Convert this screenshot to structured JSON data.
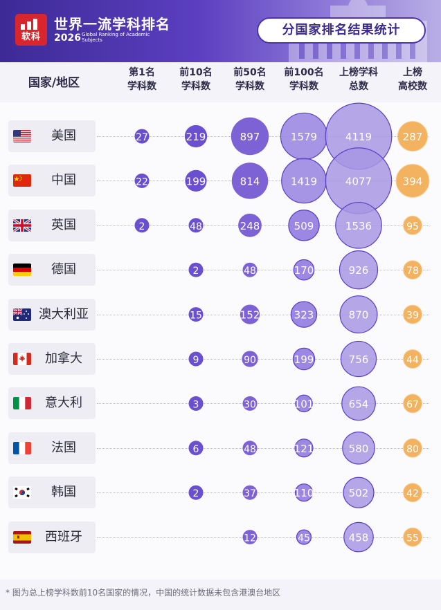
{
  "header": {
    "logo_text": "软科",
    "title": "世界一流学科排名",
    "year": "2026",
    "subtitle_en": "Global Ranking of Academic Subjects",
    "badge": "分国家排名结果统计"
  },
  "table": {
    "country_header": "国家/地区"
  },
  "chart_data": {
    "type": "bubble-table",
    "columns": [
      {
        "line1": "第1名",
        "line2": "学科数"
      },
      {
        "line1": "前10名",
        "line2": "学科数"
      },
      {
        "line1": "前50名",
        "line2": "学科数"
      },
      {
        "line1": "前100名",
        "line2": "学科数"
      },
      {
        "line1": "上榜学科",
        "line2": "总数"
      },
      {
        "line1": "上榜",
        "line2": "高校数"
      }
    ],
    "rows": [
      {
        "country": "美国",
        "flag": "us",
        "values": [
          27,
          219,
          897,
          1579,
          4119,
          287
        ]
      },
      {
        "country": "中国",
        "flag": "cn",
        "values": [
          22,
          199,
          814,
          1419,
          4077,
          394
        ]
      },
      {
        "country": "英国",
        "flag": "gb",
        "values": [
          2,
          48,
          248,
          509,
          1536,
          95
        ]
      },
      {
        "country": "德国",
        "flag": "de",
        "values": [
          null,
          2,
          48,
          170,
          926,
          78
        ]
      },
      {
        "country": "澳大利亚",
        "flag": "au",
        "values": [
          null,
          15,
          152,
          323,
          870,
          39
        ]
      },
      {
        "country": "加拿大",
        "flag": "ca",
        "values": [
          null,
          9,
          90,
          199,
          756,
          44
        ]
      },
      {
        "country": "意大利",
        "flag": "it",
        "values": [
          null,
          3,
          30,
          101,
          654,
          67
        ]
      },
      {
        "country": "法国",
        "flag": "fr",
        "values": [
          null,
          6,
          48,
          121,
          580,
          80
        ]
      },
      {
        "country": "韩国",
        "flag": "kr",
        "values": [
          null,
          2,
          37,
          110,
          502,
          42
        ]
      },
      {
        "country": "西班牙",
        "flag": "es",
        "values": [
          null,
          null,
          12,
          45,
          458,
          55
        ]
      }
    ],
    "colors": {
      "subjects": "#6a4fd0",
      "subjects_light": "#a797e3",
      "universities": "#f3b25f",
      "text": "#ffffff"
    }
  },
  "footnote": "* 图为总上榜学科数前10名国家的情况，中国的统计数据未包含港澳台地区"
}
